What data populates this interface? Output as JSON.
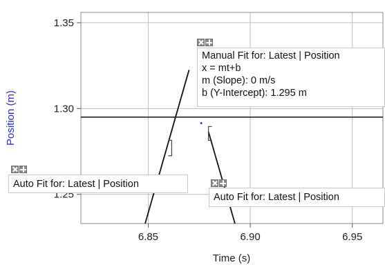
{
  "chart_data": {
    "type": "line",
    "xlabel": "Time (s)",
    "ylabel": "Position (m)",
    "xlim": [
      6.817,
      6.965
    ],
    "ylim": [
      1.233,
      1.356
    ],
    "x_ticks": [
      6.85,
      6.9,
      6.95
    ],
    "x_tick_labels": [
      "6.85",
      "6.90",
      "6.95"
    ],
    "y_ticks": [
      1.25,
      1.3,
      1.35
    ],
    "y_tick_labels": [
      "1.25",
      "1.30",
      "1.35"
    ],
    "grid": true,
    "colors": {
      "ylabel": "#2a2acc",
      "point": "#1a1acc",
      "lines": "#111111",
      "grid": "#bdbdbd"
    },
    "data_points": [
      {
        "x": 6.876,
        "y": 1.2915
      }
    ],
    "fit_lines": [
      {
        "name": "Manual Fit",
        "points": [
          [
            6.817,
            1.295
          ],
          [
            6.965,
            1.295
          ]
        ]
      },
      {
        "name": "Auto Fit 1",
        "points": [
          [
            6.8485,
            1.233
          ],
          [
            6.87,
            1.3225
          ]
        ]
      },
      {
        "name": "Auto Fit 2",
        "points": [
          [
            6.8795,
            1.2865
          ],
          [
            6.8925,
            1.233
          ]
        ]
      }
    ],
    "brackets": [
      {
        "x": 6.8615,
        "y_top": 1.2815,
        "y_bottom": 1.2725,
        "side": "right"
      },
      {
        "x": 6.8795,
        "y_top": 1.2895,
        "y_bottom": 1.2815,
        "side": "left"
      }
    ],
    "annotations": {
      "manual_fit": {
        "title": "Manual Fit for: Latest | Position",
        "equation": "x = mt+b",
        "slope": "m (Slope): 0 m/s",
        "intercept": "b (Y-Intercept): 1.295 m"
      },
      "auto_fit_left": {
        "title": "Auto Fit for: Latest | Position"
      },
      "auto_fit_right": {
        "title": "Auto Fit for: Latest | Position"
      }
    }
  }
}
